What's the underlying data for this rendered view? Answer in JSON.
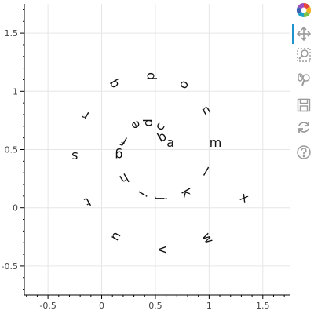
{
  "chart_data": {
    "type": "text-scatter",
    "xlim": [
      -0.72,
      1.75
    ],
    "ylim": [
      -0.75,
      1.75
    ],
    "xticks": [
      -0.5,
      0,
      0.5,
      1,
      1.5
    ],
    "yticks": [
      -0.5,
      0,
      0.5,
      1,
      1.5
    ],
    "xtick_labels": [
      "-0.5",
      "0",
      "0.5",
      "1",
      "1.5"
    ],
    "ytick_labels": [
      "-0.5",
      "0",
      "0.5",
      "1",
      "1.5"
    ],
    "grid": true,
    "points": [
      {
        "text": "a",
        "x": 0.64,
        "y": 0.56,
        "angle": 0
      },
      {
        "text": "b",
        "x": 0.56,
        "y": 0.61,
        "angle": -30
      },
      {
        "text": "c",
        "x": 0.54,
        "y": 0.7,
        "angle": -60
      },
      {
        "text": "d",
        "x": 0.43,
        "y": 0.73,
        "angle": -90
      },
      {
        "text": "e",
        "x": 0.31,
        "y": 0.71,
        "angle": -120
      },
      {
        "text": "f",
        "x": 0.21,
        "y": 0.57,
        "angle": -150
      },
      {
        "text": "g",
        "x": 0.16,
        "y": 0.45,
        "angle": 180
      },
      {
        "text": "h",
        "x": 0.21,
        "y": 0.25,
        "angle": 150
      },
      {
        "text": "i",
        "x": 0.38,
        "y": 0.12,
        "angle": 120
      },
      {
        "text": "j",
        "x": 0.56,
        "y": 0.08,
        "angle": 90
      },
      {
        "text": "k",
        "x": 0.79,
        "y": 0.13,
        "angle": 60
      },
      {
        "text": "l",
        "x": 0.97,
        "y": 0.31,
        "angle": 30
      },
      {
        "text": "m",
        "x": 1.06,
        "y": 0.56,
        "angle": 0
      },
      {
        "text": "n",
        "x": 0.97,
        "y": 0.84,
        "angle": -30
      },
      {
        "text": "o",
        "x": 0.76,
        "y": 1.06,
        "angle": -60
      },
      {
        "text": "p",
        "x": 0.45,
        "y": 1.13,
        "angle": -90
      },
      {
        "text": "q",
        "x": 0.11,
        "y": 1.06,
        "angle": -120
      },
      {
        "text": "r",
        "x": -0.15,
        "y": 0.79,
        "angle": -150
      },
      {
        "text": "s",
        "x": -0.25,
        "y": 0.44,
        "angle": 180
      },
      {
        "text": "t",
        "x": -0.13,
        "y": 0.05,
        "angle": 150
      },
      {
        "text": "u",
        "x": 0.14,
        "y": -0.25,
        "angle": 120
      },
      {
        "text": "v",
        "x": 0.57,
        "y": -0.36,
        "angle": 90
      },
      {
        "text": "w",
        "x": 0.99,
        "y": -0.26,
        "angle": 60
      },
      {
        "text": "x",
        "x": 1.33,
        "y": 0.09,
        "angle": 30
      }
    ]
  },
  "toolbar": {
    "tools": [
      {
        "name": "bokeh-logo-icon",
        "icon": "bokeh-logo",
        "interactable": false,
        "active": false
      },
      {
        "name": "pan-tool-icon",
        "icon": "pan",
        "interactable": true,
        "active": true
      },
      {
        "name": "box-zoom-tool-icon",
        "icon": "box-zoom",
        "interactable": true,
        "active": false
      },
      {
        "name": "wheel-zoom-tool-icon",
        "icon": "wheel-zoom",
        "interactable": true,
        "active": false
      },
      {
        "name": "save-tool-icon",
        "icon": "save",
        "interactable": true,
        "active": false
      },
      {
        "name": "reset-tool-icon",
        "icon": "reset",
        "interactable": true,
        "active": false
      },
      {
        "name": "help-tool-icon",
        "icon": "help",
        "interactable": true,
        "active": false
      }
    ],
    "active_color": "#1f93d0",
    "icon_color": "#9a9a9a"
  }
}
